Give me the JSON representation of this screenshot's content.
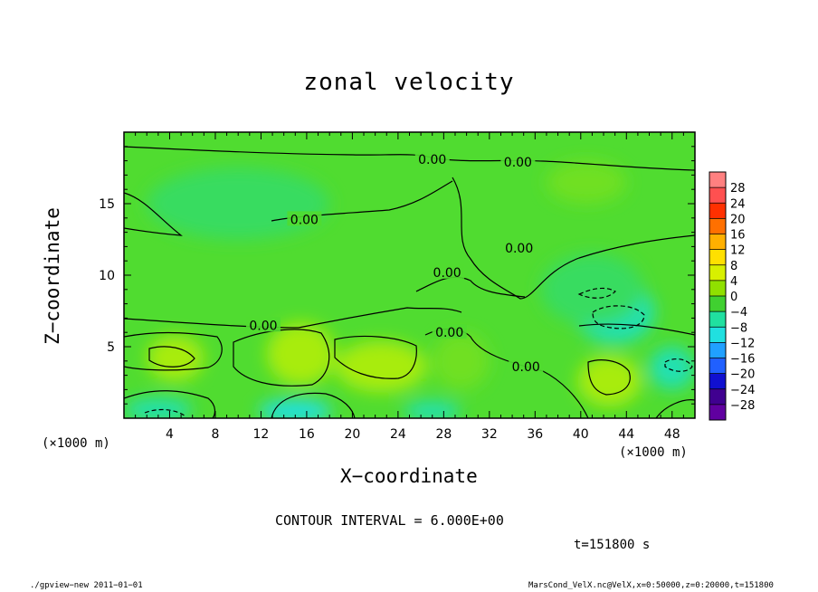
{
  "chart_data": {
    "type": "heatmap",
    "title": "zonal velocity",
    "xlabel": "X−coordinate",
    "ylabel": "Z−coordinate",
    "x_unit_left": "(×1000 m)",
    "x_unit_right": "(×1000 m)",
    "xlim": [
      0,
      50
    ],
    "ylim": [
      0,
      20
    ],
    "x_ticks": [
      4,
      8,
      12,
      16,
      20,
      24,
      28,
      32,
      36,
      40,
      44,
      48
    ],
    "y_ticks": [
      5,
      10,
      15
    ],
    "colorbar": {
      "levels": [
        28,
        24,
        20,
        16,
        12,
        8,
        4,
        0,
        -4,
        -8,
        -12,
        -16,
        -20,
        -24,
        -28
      ],
      "labels": [
        "28",
        "24",
        "20",
        "16",
        "12",
        "8",
        "4",
        "0",
        "−4",
        "−8",
        "−12",
        "−16",
        "−20",
        "−24",
        "−28"
      ],
      "colors": [
        "#ff8080",
        "#ff5050",
        "#ff3000",
        "#ff7000",
        "#ffb000",
        "#ffe000",
        "#d8f000",
        "#90e000",
        "#40d030",
        "#20e0a0",
        "#20e0e0",
        "#20a0ff",
        "#2060ff",
        "#1010d0",
        "#400090",
        "#6000a0"
      ]
    },
    "contour_labels": [
      {
        "text": "0.00",
        "x": 27.0,
        "y": 18.1
      },
      {
        "text": "0.00",
        "x": 34.5,
        "y": 17.9
      },
      {
        "text": "0.00",
        "x": 15.8,
        "y": 13.9
      },
      {
        "text": "0.00",
        "x": 34.6,
        "y": 11.9
      },
      {
        "text": "0.00",
        "x": 28.3,
        "y": 10.2
      },
      {
        "text": "0.00",
        "x": 12.2,
        "y": 6.5
      },
      {
        "text": "0.00",
        "x": 28.5,
        "y": 6.0
      },
      {
        "text": "0.00",
        "x": 35.2,
        "y": 3.6
      }
    ],
    "field_blobs": [
      {
        "x": 4.5,
        "y": 4.2,
        "rx": 2.5,
        "ry": 1.6,
        "value": 5
      },
      {
        "x": 15.5,
        "y": 4.5,
        "rx": 3.0,
        "ry": 2.2,
        "value": 7
      },
      {
        "x": 22.5,
        "y": 3.6,
        "rx": 4.0,
        "ry": 1.8,
        "value": 4
      },
      {
        "x": 42.5,
        "y": 2.6,
        "rx": 2.8,
        "ry": 1.8,
        "value": 6
      },
      {
        "x": 29.5,
        "y": 4.0,
        "rx": 2.5,
        "ry": 2.0,
        "value": 3
      },
      {
        "x": 3.0,
        "y": 0.6,
        "rx": 3.0,
        "ry": 0.8,
        "value": -6
      },
      {
        "x": 15.0,
        "y": 0.5,
        "rx": 3.2,
        "ry": 0.8,
        "value": -7
      },
      {
        "x": 27.0,
        "y": 0.5,
        "rx": 2.5,
        "ry": 0.7,
        "value": -5
      },
      {
        "x": 43.0,
        "y": 7.4,
        "rx": 3.5,
        "ry": 2.2,
        "value": -6
      },
      {
        "x": 41.0,
        "y": 9.0,
        "rx": 4.5,
        "ry": 2.5,
        "value": -3
      },
      {
        "x": 48.0,
        "y": 3.5,
        "rx": 2.0,
        "ry": 1.5,
        "value": -4
      },
      {
        "x": 40.5,
        "y": 16.5,
        "rx": 3.5,
        "ry": 1.5,
        "value": 2
      },
      {
        "x": 10.0,
        "y": 15.0,
        "rx": 8.0,
        "ry": 2.5,
        "value": -1.5
      }
    ]
  },
  "contour_interval": "CONTOUR INTERVAL = 6.000E+00",
  "time_label": "t=151800 s",
  "footer_left": "./gpview−new 2011−01−01",
  "footer_right": "MarsCond_VelX.nc@VelX,x=0:50000,z=0:20000,t=151800"
}
